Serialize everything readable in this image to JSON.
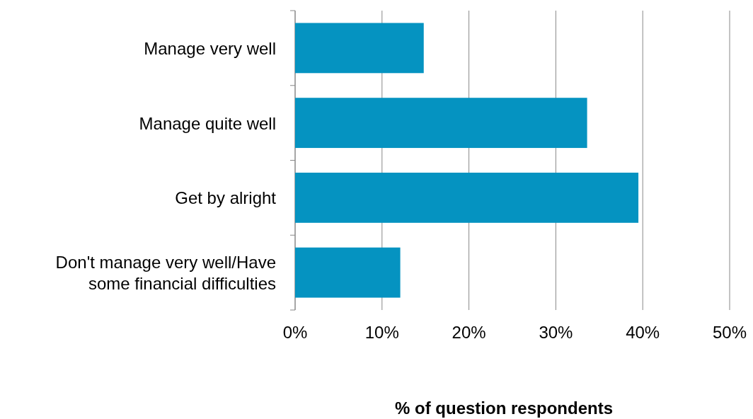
{
  "chart_data": {
    "type": "bar",
    "orientation": "horizontal",
    "categories": [
      "Manage very well",
      "Manage quite well",
      "Get by alright",
      "Don't manage very well/Have some financial difficulties"
    ],
    "values": [
      14.8,
      33.6,
      39.5,
      12.1
    ],
    "color": "#0593c1",
    "xlabel": "% of question respondents",
    "xlim": [
      0,
      50
    ],
    "xticks": [
      {
        "value": 0,
        "label": "0%"
      },
      {
        "value": 10,
        "label": "10%"
      },
      {
        "value": 20,
        "label": "20%"
      },
      {
        "value": 30,
        "label": "30%"
      },
      {
        "value": 40,
        "label": "40%"
      },
      {
        "value": 50,
        "label": "50%"
      }
    ],
    "grid": "x"
  }
}
